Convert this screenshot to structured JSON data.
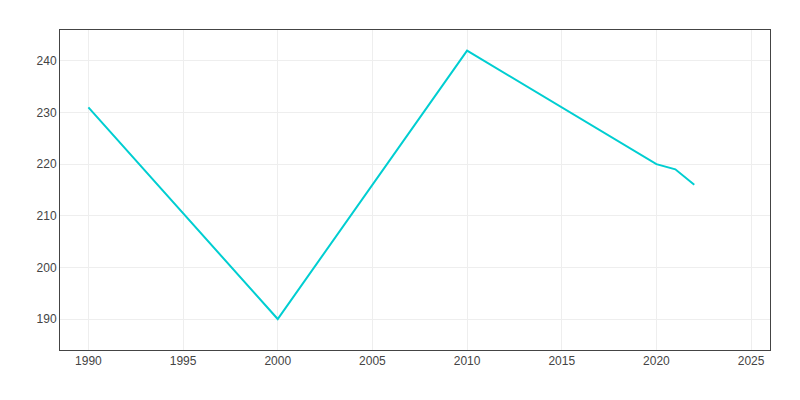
{
  "chart_data": {
    "type": "line",
    "x": [
      1990,
      2000,
      2010,
      2020,
      2021,
      2022
    ],
    "values": [
      231,
      190,
      242,
      220,
      219,
      216
    ],
    "color": "#00CED1",
    "xlim": [
      1988.5,
      2026
    ],
    "ylim": [
      184,
      246
    ],
    "xticks": [
      1990,
      1995,
      2000,
      2005,
      2010,
      2015,
      2020,
      2025
    ],
    "yticks": [
      190,
      200,
      210,
      220,
      230,
      240
    ],
    "grid": true
  }
}
